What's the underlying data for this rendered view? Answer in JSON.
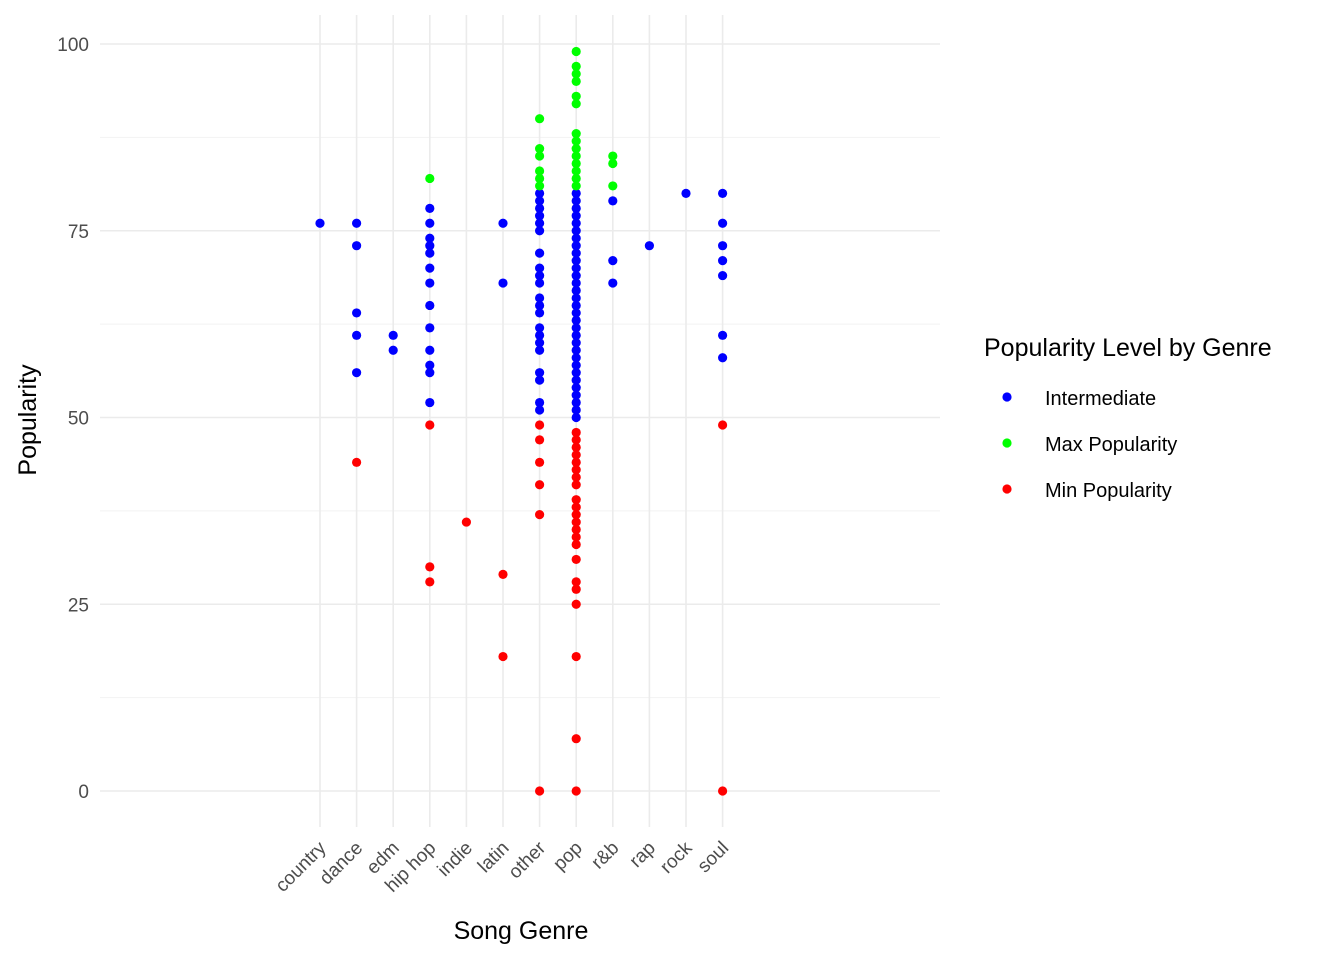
{
  "chart_data": {
    "type": "scatter",
    "xlabel": "Song Genre",
    "ylabel": "Popularity",
    "categories": [
      "country",
      "dance",
      "edm",
      "hip hop",
      "indie",
      "latin",
      "other",
      "pop",
      "r&b",
      "rap",
      "rock",
      "soul"
    ],
    "ylim": [
      0,
      100
    ],
    "yticks": [
      0,
      25,
      50,
      75,
      100
    ],
    "grid": true,
    "legend": {
      "title": "Popularity Level by Genre",
      "position": "right",
      "entries": [
        {
          "label": "Intermediate",
          "color": "#0000ff"
        },
        {
          "label": "Max Popularity",
          "color": "#00ff00"
        },
        {
          "label": "Min Popularity",
          "color": "#ff0000"
        }
      ]
    },
    "series": [
      {
        "name": "Intermediate",
        "color": "#0000ff",
        "points": [
          {
            "x": "country",
            "y": 76
          },
          {
            "x": "dance",
            "y": 76
          },
          {
            "x": "dance",
            "y": 73
          },
          {
            "x": "dance",
            "y": 64
          },
          {
            "x": "dance",
            "y": 61
          },
          {
            "x": "dance",
            "y": 56
          },
          {
            "x": "edm",
            "y": 61
          },
          {
            "x": "edm",
            "y": 59
          },
          {
            "x": "hip hop",
            "y": 78
          },
          {
            "x": "hip hop",
            "y": 76
          },
          {
            "x": "hip hop",
            "y": 74
          },
          {
            "x": "hip hop",
            "y": 73
          },
          {
            "x": "hip hop",
            "y": 72
          },
          {
            "x": "hip hop",
            "y": 70
          },
          {
            "x": "hip hop",
            "y": 68
          },
          {
            "x": "hip hop",
            "y": 65
          },
          {
            "x": "hip hop",
            "y": 62
          },
          {
            "x": "hip hop",
            "y": 59
          },
          {
            "x": "hip hop",
            "y": 57
          },
          {
            "x": "hip hop",
            "y": 56
          },
          {
            "x": "hip hop",
            "y": 52
          },
          {
            "x": "latin",
            "y": 76
          },
          {
            "x": "latin",
            "y": 68
          },
          {
            "x": "other",
            "y": 80
          },
          {
            "x": "other",
            "y": 79
          },
          {
            "x": "other",
            "y": 78
          },
          {
            "x": "other",
            "y": 77
          },
          {
            "x": "other",
            "y": 76
          },
          {
            "x": "other",
            "y": 75
          },
          {
            "x": "other",
            "y": 72
          },
          {
            "x": "other",
            "y": 70
          },
          {
            "x": "other",
            "y": 69
          },
          {
            "x": "other",
            "y": 68
          },
          {
            "x": "other",
            "y": 66
          },
          {
            "x": "other",
            "y": 65
          },
          {
            "x": "other",
            "y": 64
          },
          {
            "x": "other",
            "y": 62
          },
          {
            "x": "other",
            "y": 61
          },
          {
            "x": "other",
            "y": 60
          },
          {
            "x": "other",
            "y": 59
          },
          {
            "x": "other",
            "y": 56
          },
          {
            "x": "other",
            "y": 55
          },
          {
            "x": "other",
            "y": 52
          },
          {
            "x": "other",
            "y": 51
          },
          {
            "x": "pop",
            "y": 80
          },
          {
            "x": "pop",
            "y": 79
          },
          {
            "x": "pop",
            "y": 78
          },
          {
            "x": "pop",
            "y": 77
          },
          {
            "x": "pop",
            "y": 76
          },
          {
            "x": "pop",
            "y": 75
          },
          {
            "x": "pop",
            "y": 74
          },
          {
            "x": "pop",
            "y": 73
          },
          {
            "x": "pop",
            "y": 72
          },
          {
            "x": "pop",
            "y": 71
          },
          {
            "x": "pop",
            "y": 70
          },
          {
            "x": "pop",
            "y": 69
          },
          {
            "x": "pop",
            "y": 68
          },
          {
            "x": "pop",
            "y": 67
          },
          {
            "x": "pop",
            "y": 66
          },
          {
            "x": "pop",
            "y": 65
          },
          {
            "x": "pop",
            "y": 64
          },
          {
            "x": "pop",
            "y": 63
          },
          {
            "x": "pop",
            "y": 62
          },
          {
            "x": "pop",
            "y": 61
          },
          {
            "x": "pop",
            "y": 60
          },
          {
            "x": "pop",
            "y": 59
          },
          {
            "x": "pop",
            "y": 58
          },
          {
            "x": "pop",
            "y": 57
          },
          {
            "x": "pop",
            "y": 56
          },
          {
            "x": "pop",
            "y": 55
          },
          {
            "x": "pop",
            "y": 54
          },
          {
            "x": "pop",
            "y": 53
          },
          {
            "x": "pop",
            "y": 52
          },
          {
            "x": "pop",
            "y": 51
          },
          {
            "x": "pop",
            "y": 50
          },
          {
            "x": "r&b",
            "y": 79
          },
          {
            "x": "r&b",
            "y": 71
          },
          {
            "x": "r&b",
            "y": 68
          },
          {
            "x": "rap",
            "y": 73
          },
          {
            "x": "rock",
            "y": 80
          },
          {
            "x": "soul",
            "y": 80
          },
          {
            "x": "soul",
            "y": 76
          },
          {
            "x": "soul",
            "y": 73
          },
          {
            "x": "soul",
            "y": 71
          },
          {
            "x": "soul",
            "y": 69
          },
          {
            "x": "soul",
            "y": 61
          },
          {
            "x": "soul",
            "y": 58
          }
        ]
      },
      {
        "name": "Max Popularity",
        "color": "#00ff00",
        "points": [
          {
            "x": "hip hop",
            "y": 82
          },
          {
            "x": "other",
            "y": 90
          },
          {
            "x": "other",
            "y": 86
          },
          {
            "x": "other",
            "y": 85
          },
          {
            "x": "other",
            "y": 83
          },
          {
            "x": "other",
            "y": 82
          },
          {
            "x": "other",
            "y": 81
          },
          {
            "x": "pop",
            "y": 99
          },
          {
            "x": "pop",
            "y": 97
          },
          {
            "x": "pop",
            "y": 96
          },
          {
            "x": "pop",
            "y": 95
          },
          {
            "x": "pop",
            "y": 93
          },
          {
            "x": "pop",
            "y": 92
          },
          {
            "x": "pop",
            "y": 88
          },
          {
            "x": "pop",
            "y": 87
          },
          {
            "x": "pop",
            "y": 86
          },
          {
            "x": "pop",
            "y": 85
          },
          {
            "x": "pop",
            "y": 84
          },
          {
            "x": "pop",
            "y": 83
          },
          {
            "x": "pop",
            "y": 82
          },
          {
            "x": "pop",
            "y": 81
          },
          {
            "x": "r&b",
            "y": 85
          },
          {
            "x": "r&b",
            "y": 84
          },
          {
            "x": "r&b",
            "y": 81
          }
        ]
      },
      {
        "name": "Min Popularity",
        "color": "#ff0000",
        "points": [
          {
            "x": "dance",
            "y": 44
          },
          {
            "x": "hip hop",
            "y": 49
          },
          {
            "x": "hip hop",
            "y": 30
          },
          {
            "x": "hip hop",
            "y": 28
          },
          {
            "x": "indie",
            "y": 36
          },
          {
            "x": "latin",
            "y": 29
          },
          {
            "x": "latin",
            "y": 18
          },
          {
            "x": "other",
            "y": 49
          },
          {
            "x": "other",
            "y": 47
          },
          {
            "x": "other",
            "y": 44
          },
          {
            "x": "other",
            "y": 41
          },
          {
            "x": "other",
            "y": 37
          },
          {
            "x": "other",
            "y": 0
          },
          {
            "x": "pop",
            "y": 48
          },
          {
            "x": "pop",
            "y": 47
          },
          {
            "x": "pop",
            "y": 46
          },
          {
            "x": "pop",
            "y": 45
          },
          {
            "x": "pop",
            "y": 44
          },
          {
            "x": "pop",
            "y": 43
          },
          {
            "x": "pop",
            "y": 42
          },
          {
            "x": "pop",
            "y": 41
          },
          {
            "x": "pop",
            "y": 39
          },
          {
            "x": "pop",
            "y": 38
          },
          {
            "x": "pop",
            "y": 37
          },
          {
            "x": "pop",
            "y": 36
          },
          {
            "x": "pop",
            "y": 35
          },
          {
            "x": "pop",
            "y": 34
          },
          {
            "x": "pop",
            "y": 33
          },
          {
            "x": "pop",
            "y": 31
          },
          {
            "x": "pop",
            "y": 28
          },
          {
            "x": "pop",
            "y": 27
          },
          {
            "x": "pop",
            "y": 25
          },
          {
            "x": "pop",
            "y": 18
          },
          {
            "x": "pop",
            "y": 7
          },
          {
            "x": "pop",
            "y": 0
          },
          {
            "x": "soul",
            "y": 49
          },
          {
            "x": "soul",
            "y": 0
          }
        ]
      }
    ]
  }
}
